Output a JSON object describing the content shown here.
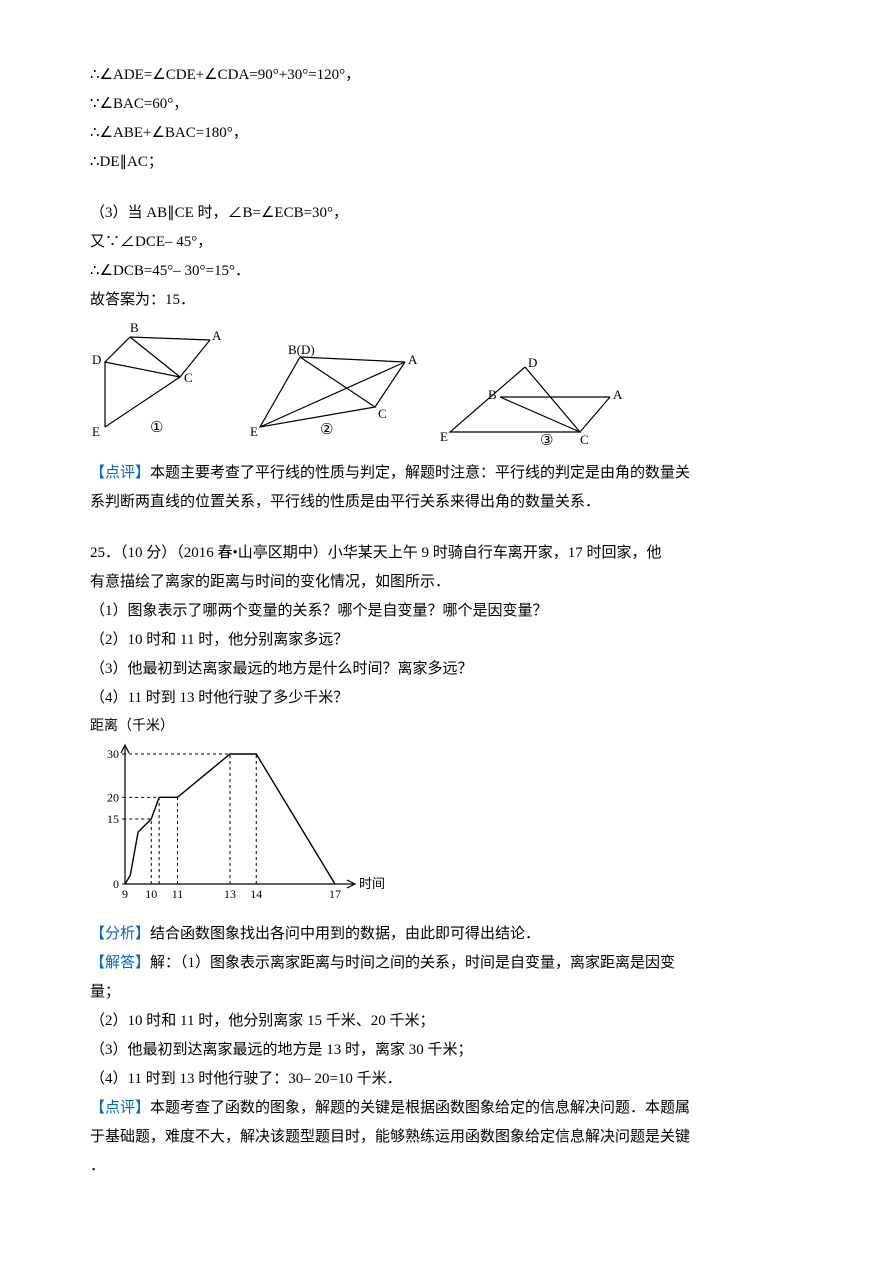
{
  "top": {
    "l1": "∴∠ADE=∠CDE+∠CDA=90°+30°=120°，",
    "l2": "∵∠BAC=60°，",
    "l3": "∴∠ABE+∠BAC=180°，",
    "l4": "∴DE∥AC；"
  },
  "part3": {
    "l1": "（3）当 AB∥CE 时，∠B=∠ECB=30°，",
    "l2": "又∵∠DCE– 45°，",
    "l3": "∴∠DCB=45°– 30°=15°．",
    "l4": "故答案为：15．"
  },
  "figures": {
    "labels": {
      "A": "A",
      "B": "B",
      "C": "C",
      "D": "D",
      "E": "E",
      "BD": "B(D)",
      "n1": "①",
      "n2": "②",
      "n3": "③"
    },
    "stroke": "#000000"
  },
  "comment1": {
    "tag": "【点评】",
    "text_a": "本题主要考查了平行线的性质与判定，解题时注意：平行线的判定是由角的数量关",
    "text_b": "系判断两直线的位置关系，平行线的性质是由平行关系来得出角的数量关系．"
  },
  "q25": {
    "header": "25．（10 分）（2016 春•山亭区期中）小华某天上午 9 时骑自行车离开家，17 时回家，他",
    "header_b": "有意描绘了离家的距离与时间的变化情况，如图所示．",
    "l1": "（1）图象表示了哪两个变量的关系？哪个是自变量？哪个是因变量？",
    "l2": "（2）10 时和 11 时，他分别离家多远？",
    "l3": "（3）他最初到达离家最远的地方是什么时间？离家多远？",
    "l4": "（4）11 时到 13 时他行驶了多少千米？"
  },
  "chart": {
    "y_title": "距离（千米）",
    "x_title": "时间（时）",
    "y_ticks": [
      0,
      15,
      20,
      30
    ],
    "x_ticks": [
      9,
      10,
      11,
      13,
      14,
      17
    ],
    "points": [
      {
        "x": 9,
        "y": 0
      },
      {
        "x": 9.2,
        "y": 2
      },
      {
        "x": 9.5,
        "y": 12
      },
      {
        "x": 10,
        "y": 15
      },
      {
        "x": 10.3,
        "y": 20
      },
      {
        "x": 11,
        "y": 20
      },
      {
        "x": 13,
        "y": 30
      },
      {
        "x": 14,
        "y": 30
      },
      {
        "x": 17,
        "y": 0
      }
    ],
    "stroke": "#000000",
    "dash_color": "#000000"
  },
  "analysis": {
    "tag": "【分析】",
    "text": "结合函数图象找出各问中用到的数据，由此即可得出结论．"
  },
  "answer": {
    "tag": "【解答】",
    "l0": "解：（1）图象表示离家距离与时间之间的关系，时间是自变量，离家距离是因变",
    "l0b": "量；",
    "l1": "（2）10 时和 11 时，他分别离家 15 千米、20 千米；",
    "l2": "（3）他最初到达离家最远的地方是 13 时，离家 30 千米；",
    "l3": "（4）11 时到 13 时他行驶了：30– 20=10 千米．"
  },
  "comment2": {
    "tag": "【点评】",
    "text_a": "本题考查了函数的图象，解题的关键是根据函数图象给定的信息解决问题．本题属",
    "text_b": "于基础题，难度不大，解决该题型题目时，能够熟练运用函数图象给定信息解决问题是关键",
    "text_c": "．"
  }
}
